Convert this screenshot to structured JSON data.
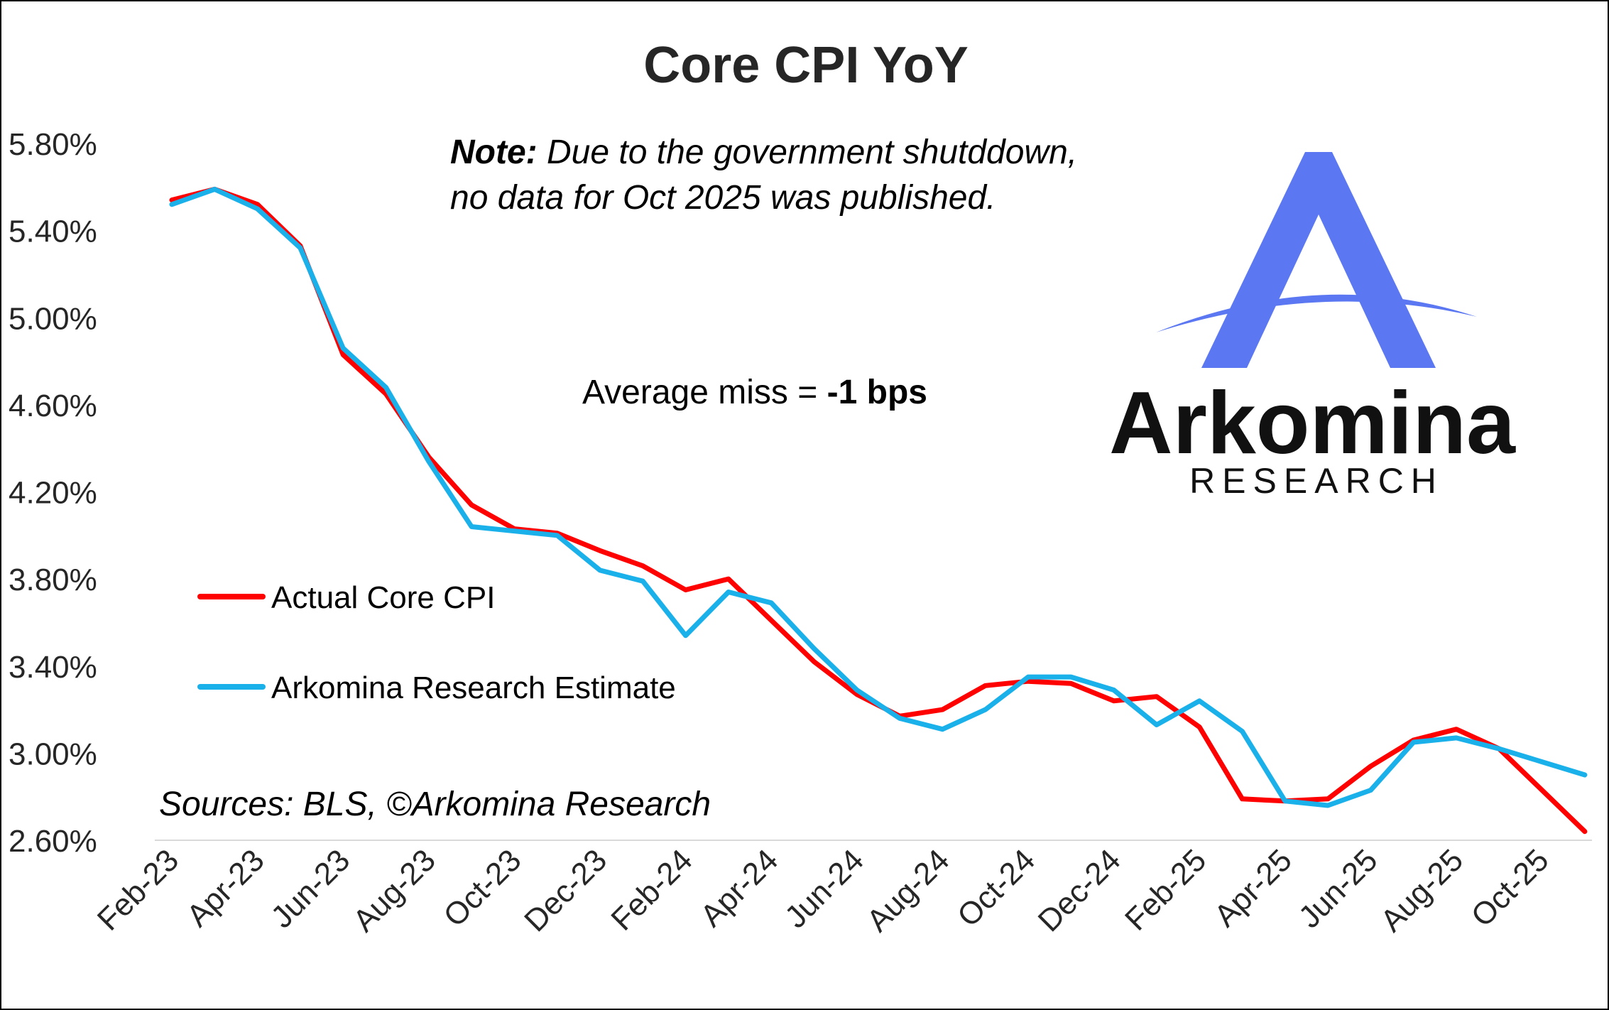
{
  "chart_data": {
    "type": "line",
    "title": "Core CPI YoY",
    "x": [
      "Feb-23",
      "Mar-23",
      "Apr-23",
      "May-23",
      "Jun-23",
      "Jul-23",
      "Aug-23",
      "Sep-23",
      "Oct-23",
      "Nov-23",
      "Dec-23",
      "Jan-24",
      "Feb-24",
      "Mar-24",
      "Apr-24",
      "May-24",
      "Jun-24",
      "Jul-24",
      "Aug-24",
      "Sep-24",
      "Oct-24",
      "Nov-24",
      "Dec-24",
      "Jan-25",
      "Feb-25",
      "Mar-25",
      "Apr-25",
      "May-25",
      "Jun-25",
      "Jul-25",
      "Aug-25",
      "Sep-25",
      "Oct-25",
      "Nov-25"
    ],
    "x_tick_labels": [
      "Feb-23",
      "Apr-23",
      "Jun-23",
      "Aug-23",
      "Oct-23",
      "Dec-23",
      "Feb-24",
      "Apr-24",
      "Jun-24",
      "Aug-24",
      "Oct-24",
      "Dec-24",
      "Feb-25",
      "Apr-25",
      "Jun-25",
      "Aug-25",
      "Oct-25"
    ],
    "series": [
      {
        "name": "Actual Core CPI",
        "color": "#ff0000",
        "values": [
          5.54,
          5.59,
          5.52,
          5.33,
          4.83,
          4.65,
          4.36,
          4.14,
          4.03,
          4.01,
          3.93,
          3.86,
          3.75,
          3.8,
          3.61,
          3.42,
          3.27,
          3.17,
          3.2,
          3.31,
          3.33,
          3.32,
          3.24,
          3.26,
          3.12,
          2.79,
          2.78,
          2.79,
          2.94,
          3.06,
          3.11,
          3.02,
          null,
          2.64
        ]
      },
      {
        "name": "Arkomina Research Estimate",
        "color": "#1ab0ea",
        "values": [
          5.52,
          5.59,
          5.5,
          5.32,
          4.86,
          4.68,
          4.34,
          4.04,
          4.02,
          4.0,
          3.84,
          3.79,
          3.54,
          3.74,
          3.69,
          3.48,
          3.29,
          3.16,
          3.11,
          3.2,
          3.35,
          3.35,
          3.29,
          3.13,
          3.24,
          3.1,
          2.78,
          2.76,
          2.83,
          3.05,
          3.07,
          3.02,
          2.96,
          2.9
        ]
      }
    ],
    "y_tick_labels": [
      "5.80%",
      "5.40%",
      "5.00%",
      "4.60%",
      "4.20%",
      "3.80%",
      "3.40%",
      "3.00%",
      "2.60%"
    ],
    "ylim": [
      2.6,
      5.8
    ],
    "ylabel": "",
    "xlabel": "",
    "grid": false,
    "legend_placement": "left"
  },
  "annotations": {
    "note_bold": "Note:",
    "note_line1": " Due to the government shutddown,",
    "note_line2": "no data for Oct 2025 was published.",
    "avg_prefix": "Average miss = ",
    "avg_value": "-1 bps",
    "sources": "Sources: BLS, ©Arkomina Research"
  },
  "logo": {
    "name": "Arkomina",
    "subtitle": "RESEARCH",
    "colors": {
      "mark": "#5b78f2",
      "text": "#111111"
    }
  }
}
